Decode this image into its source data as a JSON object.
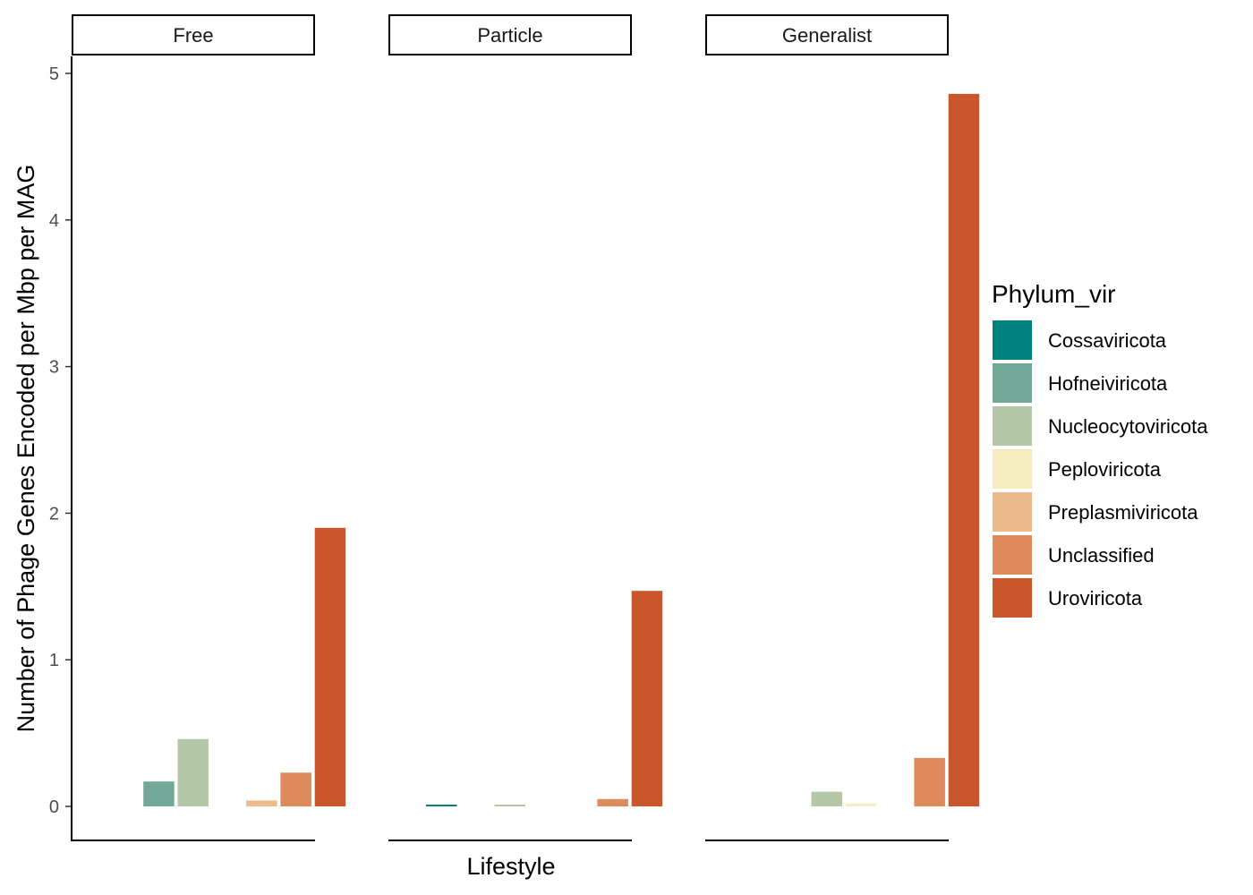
{
  "chart_data": {
    "type": "bar",
    "facet_variable": "Lifestyle",
    "facets": [
      "Free",
      "Particle",
      "Generalist"
    ],
    "categories": [
      "Cossaviricota",
      "Hofneiviricota",
      "Nucleocytoviricota",
      "Peploviricota",
      "Preplasmiviricota",
      "Unclassified",
      "Uroviricota"
    ],
    "colors": [
      "#00837F",
      "#72A898",
      "#B4C8A8",
      "#F5EDC0",
      "#EDBA8C",
      "#DE8A5A",
      "#CA562C"
    ],
    "values": {
      "Free": [
        null,
        0.17,
        0.46,
        null,
        0.04,
        0.23,
        1.9
      ],
      "Particle": [
        0.01,
        null,
        0.01,
        null,
        null,
        0.05,
        1.47
      ],
      "Generalist": [
        null,
        null,
        0.1,
        0.02,
        null,
        0.33,
        4.86
      ]
    },
    "xlabel": "Lifestyle",
    "ylabel": "Number of Phage Genes Encoded per Mbp per MAG",
    "ylim": [
      0,
      5
    ],
    "yticks": [
      "0",
      "1",
      "2",
      "3",
      "4",
      "5"
    ],
    "grid": false,
    "legend": {
      "title": "Phylum_vir",
      "position": "right"
    }
  }
}
